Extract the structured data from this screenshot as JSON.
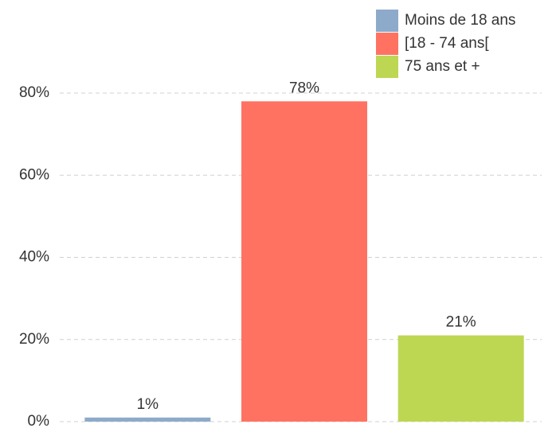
{
  "chart_data": {
    "type": "bar",
    "categories": [
      "Moins de 18 ans",
      "[18 - 74 ans[",
      "75 ans et +"
    ],
    "values": [
      1,
      78,
      21
    ],
    "value_labels": [
      "1%",
      "78%",
      "21%"
    ],
    "colors": [
      "#8eaacb",
      "#ff7262",
      "#bdd753"
    ],
    "ylim": [
      0,
      80
    ],
    "yticks": [
      {
        "value": 0,
        "label": "0%"
      },
      {
        "value": 20,
        "label": "20%"
      },
      {
        "value": 40,
        "label": "40%"
      },
      {
        "value": 60,
        "label": "60%"
      },
      {
        "value": 80,
        "label": "80%"
      }
    ],
    "grid": true,
    "legend": "top-right"
  }
}
